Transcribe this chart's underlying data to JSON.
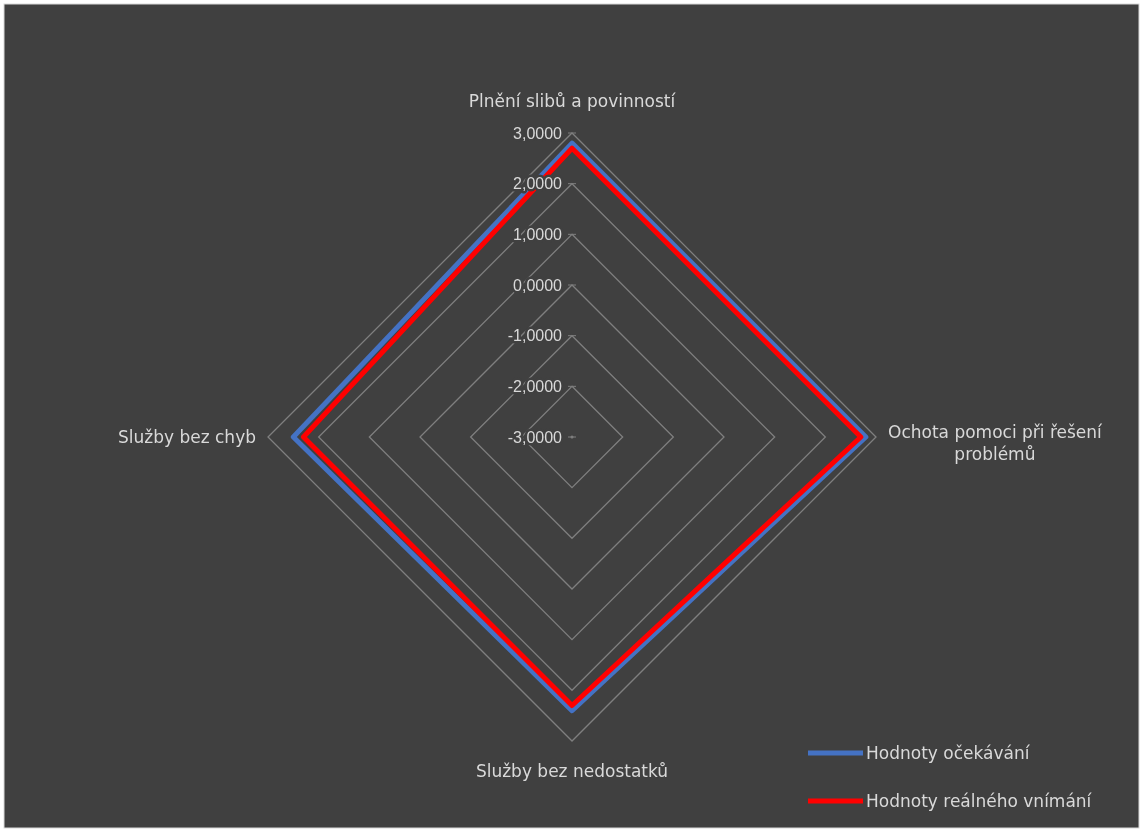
{
  "chart_data": {
    "type": "radar",
    "categories": [
      "Plnění slibů a povinností",
      "Ochota pomoci při řešení problémů",
      "Služby bez nedostatků",
      "Služby bez chyb"
    ],
    "series": [
      {
        "name": "Hodnoty očekávání",
        "color": "#4472c4",
        "values": [
          2.8,
          2.8,
          2.4,
          2.5
        ]
      },
      {
        "name": "Hodnoty reálného vnímání",
        "color": "#ff0000",
        "values": [
          2.7,
          2.7,
          2.3,
          2.3
        ]
      }
    ],
    "ylim": [
      -3,
      3
    ],
    "yticks": [
      {
        "value": -3,
        "label": "-3,0000"
      },
      {
        "value": -2,
        "label": "-2,0000"
      },
      {
        "value": -1,
        "label": "-1,0000"
      },
      {
        "value": 0,
        "label": "0,0000"
      },
      {
        "value": 1,
        "label": "1,0000"
      },
      {
        "value": 2,
        "label": "2,0000"
      },
      {
        "value": 3,
        "label": "3,0000"
      }
    ],
    "grid": true,
    "legend": "bottom right"
  }
}
